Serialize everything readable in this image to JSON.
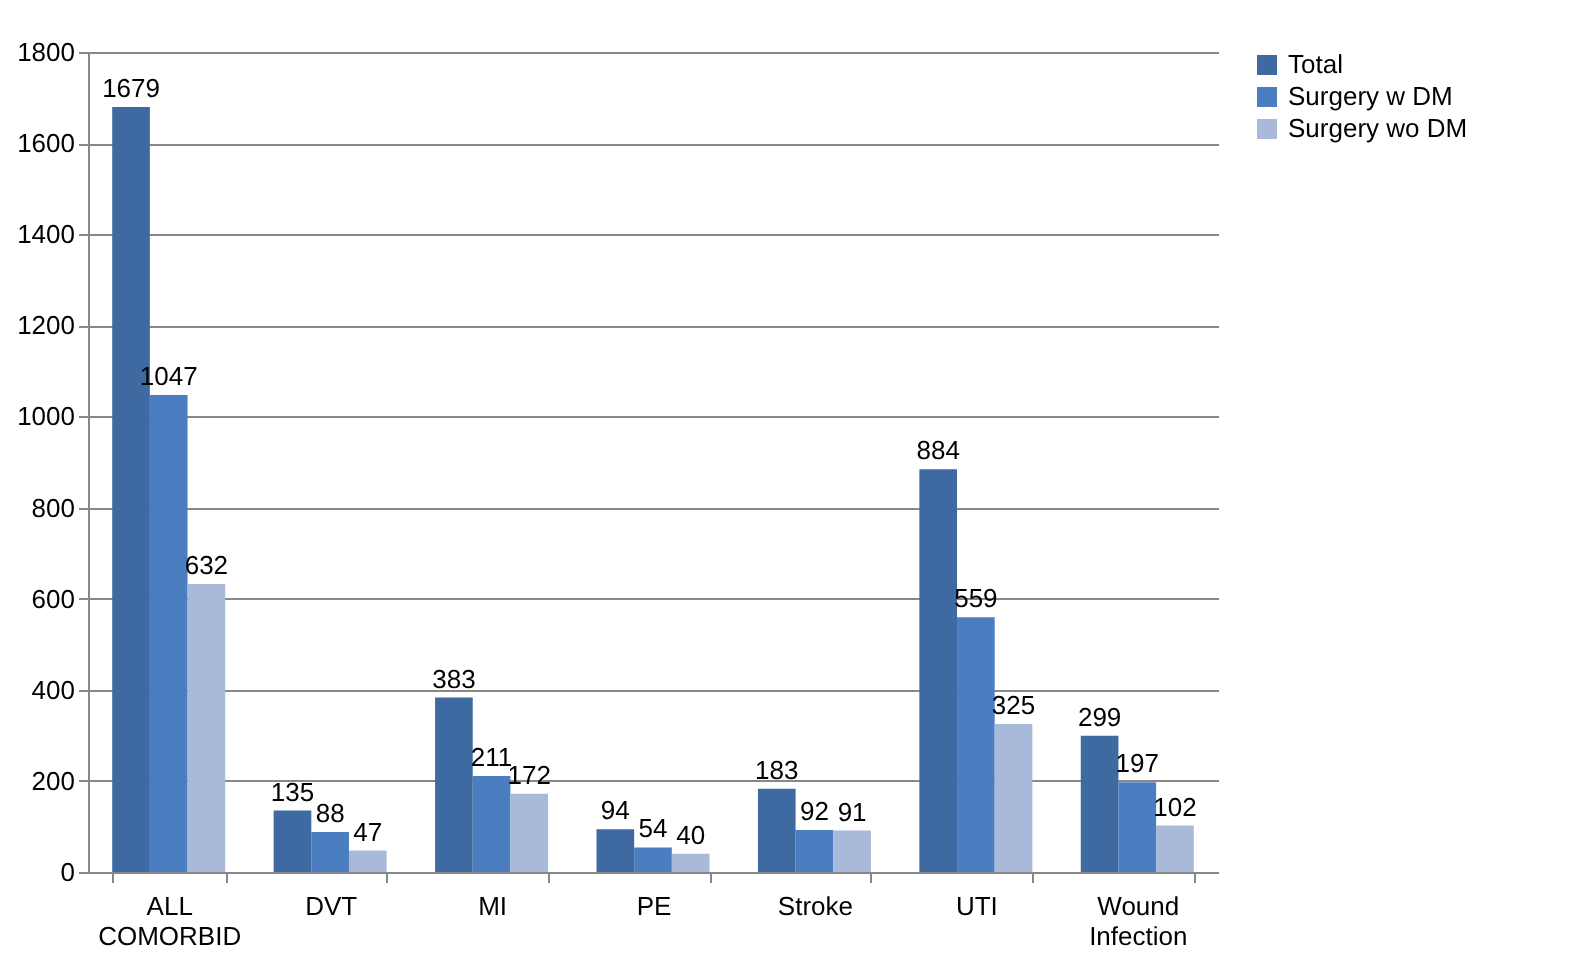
{
  "chart_data": {
    "type": "bar",
    "categories": [
      "ALL COMORBID",
      "DVT",
      "MI",
      "PE",
      "Stroke",
      "UTI",
      "Wound Infection"
    ],
    "series": [
      {
        "name": "Total",
        "color": "#3f6aa1",
        "values": [
          1679,
          135,
          383,
          94,
          183,
          884,
          299
        ]
      },
      {
        "name": "Surgery w DM",
        "color": "#4a7ec0",
        "values": [
          1047,
          88,
          211,
          54,
          92,
          559,
          197
        ]
      },
      {
        "name": "Surgery wo DM",
        "color": "#a8b9da",
        "values": [
          632,
          47,
          172,
          40,
          91,
          325,
          102
        ]
      }
    ],
    "ylim": [
      0,
      1800
    ],
    "yticks": [
      0,
      200,
      400,
      600,
      800,
      1000,
      1200,
      1400,
      1600,
      1800
    ],
    "grid": "y",
    "legend": "right",
    "data_labels": true
  }
}
